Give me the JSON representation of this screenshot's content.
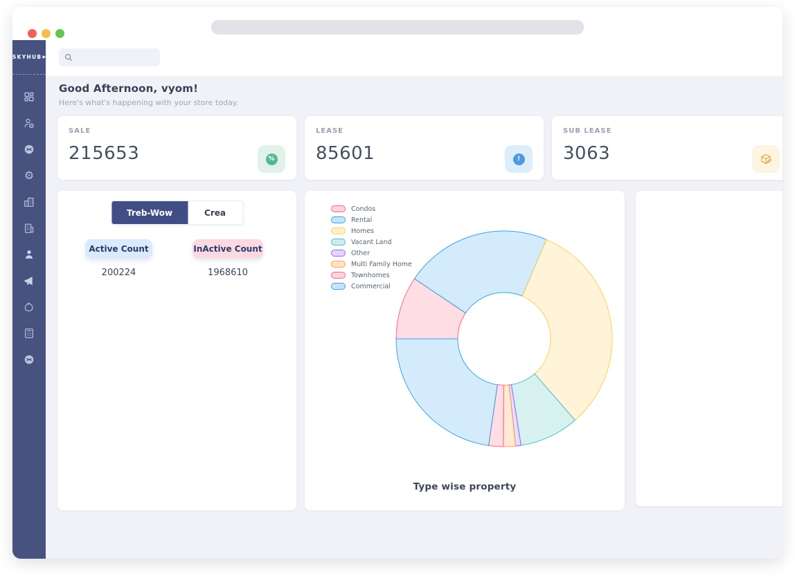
{
  "window": {
    "traffic_lights": [
      {
        "name": "close",
        "color": "#f2605b"
      },
      {
        "name": "minimize",
        "color": "#f6bd4e"
      },
      {
        "name": "maximize",
        "color": "#62c554"
      }
    ]
  },
  "sidebar": {
    "logo": "SKYHUB",
    "logo_suffix": "▶",
    "items": [
      {
        "name": "dashboard"
      },
      {
        "name": "users"
      },
      {
        "name": "web"
      },
      {
        "name": "settings"
      },
      {
        "name": "city"
      },
      {
        "name": "office"
      },
      {
        "name": "profile"
      },
      {
        "name": "announcements"
      },
      {
        "name": "bag"
      },
      {
        "name": "calculator"
      },
      {
        "name": "web-alt"
      }
    ]
  },
  "header": {
    "search_placeholder": ""
  },
  "greeting": {
    "title": "Good Afternoon, vyom!",
    "subtitle": "Here's what's happening with your store today."
  },
  "stats": [
    {
      "label": "SALE",
      "value": "215653",
      "icon": "discount-seal-icon",
      "glyph": "%",
      "accent": "#52b890",
      "icon_bg": "#e2f2eb"
    },
    {
      "label": "LEASE",
      "value": "85601",
      "icon": "alert-seal-icon",
      "glyph": "!",
      "accent": "#4e9add",
      "icon_bg": "#ddedfa"
    },
    {
      "label": "SUB LEASE",
      "value": "3063",
      "icon": "package-icon",
      "glyph": "",
      "accent": "#e5a63f",
      "icon_bg": "#fdf4e1"
    }
  ],
  "source_panel": {
    "active_tab_bg": "#414d85",
    "tabs": [
      {
        "label": "Treb-Wow",
        "active": true
      },
      {
        "label": "Crea",
        "active": false
      }
    ],
    "counts": [
      {
        "label": "Active Count",
        "value": "200224",
        "chip_bg": "#d9eafc"
      },
      {
        "label": "InActive Count",
        "value": "1968610",
        "chip_bg": "#fbd9e2"
      }
    ]
  },
  "chart_data": {
    "type": "pie",
    "title": "Type wise property",
    "labels": [
      "Condos",
      "Rental",
      "Homes",
      "Vacant Land",
      "Other",
      "Multi Family Home",
      "Townhomes",
      "Commercial"
    ],
    "values_percent": [
      9.4,
      22.0,
      32.2,
      8.9,
      0.8,
      1.8,
      2.2,
      22.7
    ],
    "colors": [
      "#FF6384",
      "#36A2EB",
      "#FFCE56",
      "#4BC0C0",
      "#9966FF",
      "#FF9F40",
      "#FF6384",
      "#36A2EB"
    ],
    "fill_alpha": 0.22,
    "donut_hole_ratio": 0.43,
    "start_angle_deg": 270,
    "direction": "clockwise",
    "legend_position": "top-left"
  }
}
